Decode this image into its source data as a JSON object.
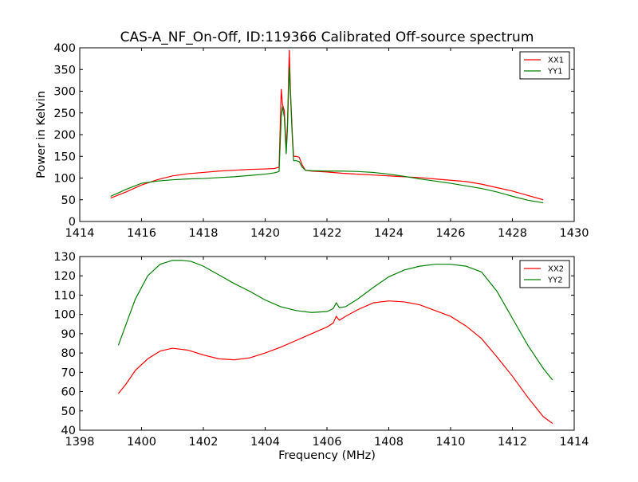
{
  "figure": {
    "title": "CAS-A_NF_On-Off, ID:119366 Calibrated Off-source spectrum"
  },
  "chart_data": [
    {
      "type": "line",
      "title": "CAS-A_NF_On-Off, ID:119366 Calibrated Off-source spectrum",
      "xlabel": "",
      "ylabel": "Power in Kelvin",
      "xlim": [
        1414,
        1430
      ],
      "ylim": [
        0,
        400
      ],
      "xticks": [
        1414,
        1416,
        1418,
        1420,
        1422,
        1424,
        1426,
        1428,
        1430
      ],
      "yticks": [
        0,
        50,
        100,
        150,
        200,
        250,
        300,
        350,
        400
      ],
      "grid": false,
      "legend": "top-right",
      "series": [
        {
          "name": "XX1",
          "color": "#ff0000",
          "x": [
            1415.0,
            1415.5,
            1416.0,
            1416.5,
            1417.0,
            1417.5,
            1418.0,
            1418.5,
            1419.0,
            1419.5,
            1420.0,
            1420.3,
            1420.45,
            1420.52,
            1420.56,
            1420.62,
            1420.68,
            1420.72,
            1420.78,
            1420.82,
            1420.88,
            1420.92,
            1421.0,
            1421.1,
            1421.2,
            1421.3,
            1421.5,
            1422.0,
            1422.5,
            1423.0,
            1423.5,
            1424.0,
            1424.5,
            1425.0,
            1425.5,
            1426.0,
            1426.5,
            1427.0,
            1427.5,
            1428.0,
            1428.5,
            1429.0
          ],
          "values": [
            54,
            68,
            84,
            96,
            105,
            110,
            113,
            116,
            118,
            120,
            121,
            122,
            125,
            305,
            270,
            255,
            170,
            220,
            395,
            300,
            200,
            150,
            150,
            148,
            130,
            118,
            116,
            114,
            111,
            109,
            107,
            105,
            103,
            101,
            98,
            95,
            92,
            86,
            78,
            70,
            60,
            50
          ]
        },
        {
          "name": "YY1",
          "color": "#008000",
          "x": [
            1415.0,
            1415.5,
            1416.0,
            1416.5,
            1417.0,
            1417.5,
            1418.0,
            1418.5,
            1419.0,
            1419.5,
            1420.0,
            1420.3,
            1420.45,
            1420.52,
            1420.56,
            1420.62,
            1420.68,
            1420.72,
            1420.78,
            1420.82,
            1420.88,
            1420.92,
            1421.0,
            1421.1,
            1421.2,
            1421.3,
            1421.5,
            1422.0,
            1422.5,
            1423.0,
            1423.5,
            1424.0,
            1424.5,
            1425.0,
            1425.5,
            1426.0,
            1426.5,
            1427.0,
            1427.5,
            1428.0,
            1428.5,
            1429.0
          ],
          "values": [
            58,
            74,
            88,
            93,
            96,
            98,
            99,
            101,
            103,
            106,
            109,
            112,
            115,
            240,
            265,
            240,
            155,
            210,
            355,
            290,
            190,
            140,
            140,
            138,
            125,
            118,
            117,
            116,
            116,
            115,
            113,
            109,
            104,
            98,
            93,
            88,
            82,
            76,
            68,
            58,
            49,
            43
          ]
        }
      ]
    },
    {
      "type": "line",
      "title": "",
      "xlabel": "Frequency (MHz)",
      "ylabel": "",
      "xlim": [
        1398,
        1414
      ],
      "ylim": [
        40,
        130
      ],
      "xticks": [
        1398,
        1400,
        1402,
        1404,
        1406,
        1408,
        1410,
        1412,
        1414
      ],
      "yticks": [
        40,
        50,
        60,
        70,
        80,
        90,
        100,
        110,
        120,
        130
      ],
      "grid": false,
      "legend": "top-right",
      "series": [
        {
          "name": "XX2",
          "color": "#ff0000",
          "x": [
            1399.25,
            1399.5,
            1399.8,
            1400.2,
            1400.6,
            1401.0,
            1401.5,
            1402.0,
            1402.5,
            1403.0,
            1403.5,
            1404.0,
            1404.5,
            1405.0,
            1405.5,
            1406.0,
            1406.2,
            1406.3,
            1406.4,
            1406.6,
            1407.0,
            1407.5,
            1408.0,
            1408.5,
            1409.0,
            1409.5,
            1410.0,
            1410.5,
            1411.0,
            1411.5,
            1412.0,
            1412.5,
            1413.0,
            1413.3
          ],
          "values": [
            59,
            64,
            71,
            77,
            81,
            82.5,
            81.5,
            79,
            77,
            76.5,
            77.5,
            80,
            83,
            86.5,
            90,
            93.5,
            95.5,
            99,
            97,
            99,
            102.5,
            106,
            107,
            106.5,
            105,
            102,
            99,
            94,
            87.5,
            78,
            68,
            57,
            47,
            43.5
          ]
        },
        {
          "name": "YY2",
          "color": "#008000",
          "x": [
            1399.25,
            1399.5,
            1399.8,
            1400.2,
            1400.6,
            1401.0,
            1401.3,
            1401.6,
            1402.0,
            1402.5,
            1403.0,
            1403.5,
            1404.0,
            1404.5,
            1405.0,
            1405.5,
            1406.0,
            1406.2,
            1406.3,
            1406.4,
            1406.6,
            1407.0,
            1407.5,
            1408.0,
            1408.5,
            1409.0,
            1409.5,
            1410.0,
            1410.5,
            1411.0,
            1411.5,
            1412.0,
            1412.5,
            1413.0,
            1413.3
          ],
          "values": [
            84,
            95,
            108,
            120,
            126,
            128,
            128,
            127.5,
            125,
            120.5,
            116,
            112,
            107.5,
            104,
            102,
            101,
            101.5,
            103,
            106,
            103.5,
            104,
            108,
            114,
            119.5,
            123,
            125,
            126,
            126,
            125,
            122,
            112,
            98,
            84,
            72,
            66
          ]
        }
      ]
    }
  ]
}
